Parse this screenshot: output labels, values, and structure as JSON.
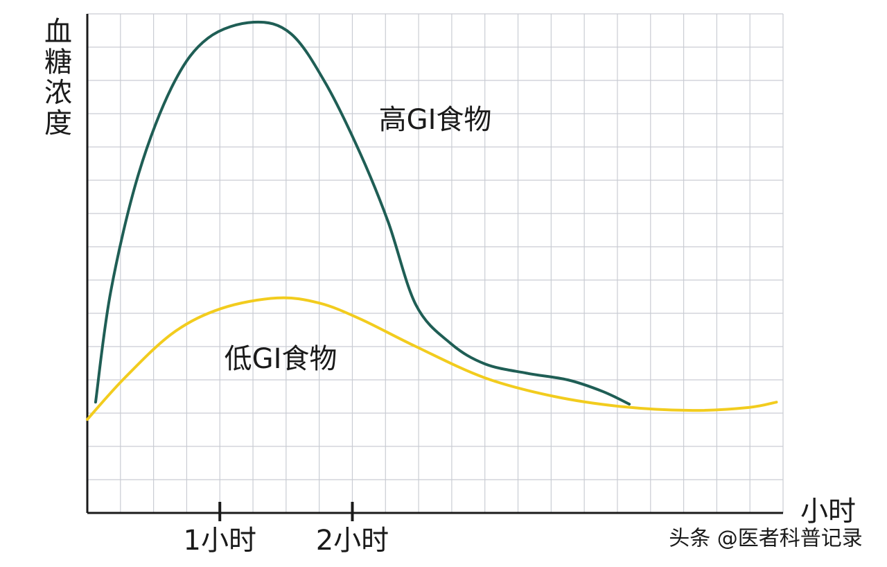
{
  "chart_data": {
    "type": "line",
    "y_label": "血糖浓度",
    "x_label": "小时",
    "watermark": "头条 @医者科普记录",
    "xlim": [
      0,
      21
    ],
    "ylim": [
      0,
      15
    ],
    "xticks": [
      {
        "value": 4,
        "label": "1小时"
      },
      {
        "value": 8,
        "label": "2小时"
      }
    ],
    "grid": true,
    "series": [
      {
        "name": "高GI食物",
        "color": "#1f5e55",
        "x": [
          0.25,
          0.71,
          1.55,
          2.6,
          3.64,
          5.02,
          6.15,
          7.2,
          8.24,
          9.08,
          9.92,
          10.96,
          12.0,
          13.26,
          14.5,
          15.56,
          16.36
        ],
        "values": [
          3.33,
          6.67,
          10.2,
          12.9,
          14.27,
          14.75,
          14.4,
          12.9,
          10.8,
          8.75,
          6.25,
          5.1,
          4.48,
          4.2,
          4.0,
          3.65,
          3.27
        ]
      },
      {
        "name": "低GI食物",
        "color": "#f2cc1e",
        "x": [
          0,
          1.13,
          2.6,
          4.06,
          5.73,
          6.99,
          8.24,
          9.92,
          12.0,
          14.1,
          16.19,
          18.28,
          19.96,
          20.8
        ],
        "values": [
          2.81,
          4.06,
          5.42,
          6.15,
          6.46,
          6.31,
          5.83,
          5.0,
          4.06,
          3.5,
          3.19,
          3.08,
          3.17,
          3.33
        ]
      }
    ]
  }
}
